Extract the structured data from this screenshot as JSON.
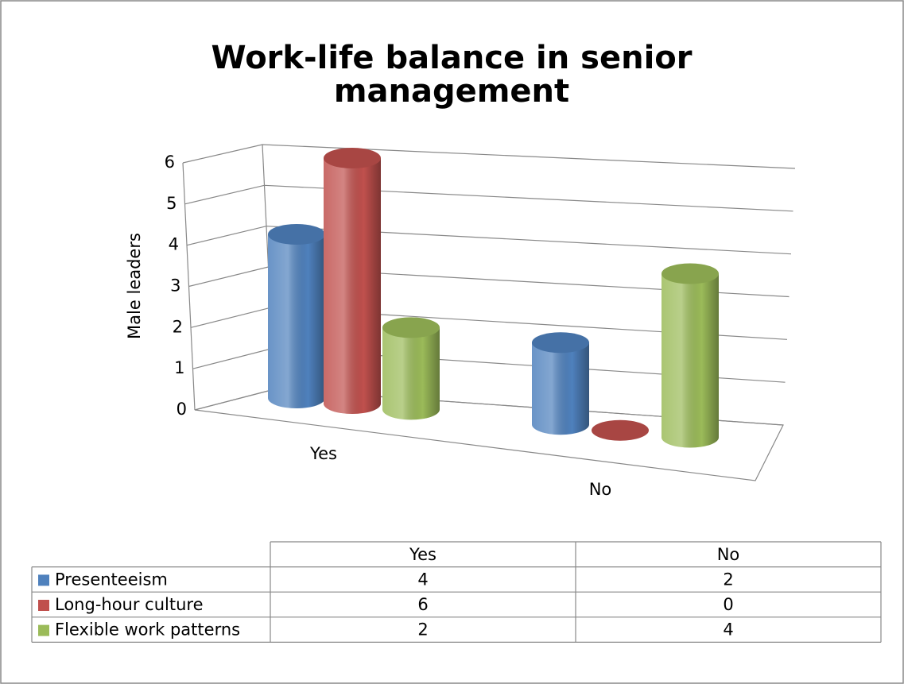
{
  "chart_data": {
    "type": "bar",
    "title": "Work-life balance in senior management",
    "y_label": "Male leaders",
    "categories": [
      "Yes",
      "No"
    ],
    "series": [
      {
        "name": "Presenteeism",
        "color": "#4f81bd",
        "values": [
          4,
          2
        ]
      },
      {
        "name": "Long-hour culture",
        "color": "#c0504d",
        "values": [
          6,
          0
        ]
      },
      {
        "name": "Flexible work patterns",
        "color": "#9bbb59",
        "values": [
          2,
          4
        ]
      }
    ],
    "ylim": [
      0,
      6
    ],
    "yticks": [
      0,
      1,
      2,
      3,
      4,
      5,
      6
    ],
    "grid": true,
    "data_table": true
  }
}
